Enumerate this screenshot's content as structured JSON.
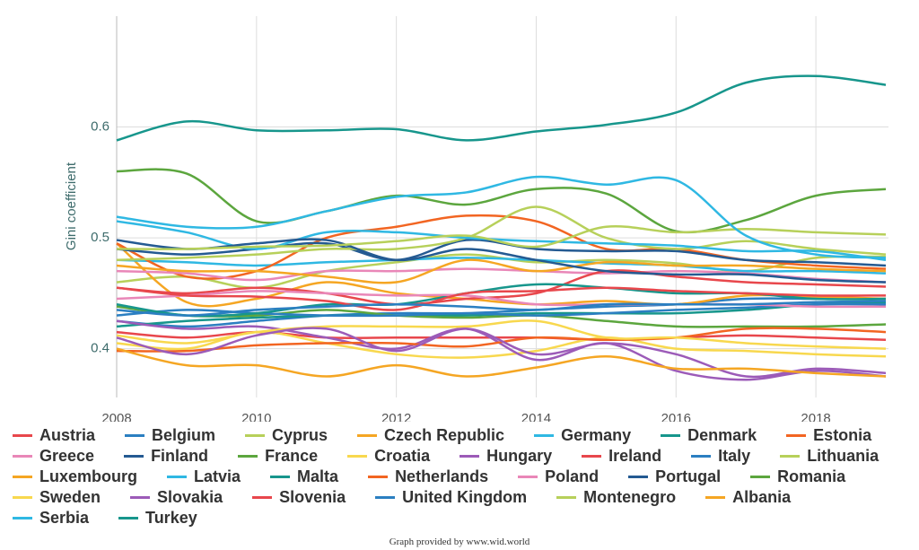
{
  "chart_data": {
    "type": "line",
    "y_label": "Gini coefficient",
    "footer": "Graph provided by www.wid.world",
    "x": [
      2008,
      2009,
      2010,
      2011,
      2012,
      2013,
      2014,
      2015,
      2016,
      2017,
      2018,
      2019
    ],
    "xlim": [
      2008,
      2019
    ],
    "xticks": [
      2008,
      2010,
      2012,
      2014,
      2016,
      2018
    ],
    "ylim": [
      0.356,
      0.7
    ],
    "yticks": [
      0.4,
      0.5,
      0.6
    ],
    "grid": true,
    "series": [
      {
        "name": "Austria",
        "color": "#e8474c",
        "values": [
          0.415,
          0.41,
          0.415,
          0.41,
          0.41,
          0.41,
          0.41,
          0.408,
          0.41,
          0.412,
          0.41,
          0.408
        ]
      },
      {
        "name": "Belgium",
        "color": "#2b7fc1",
        "values": [
          0.425,
          0.42,
          0.425,
          0.43,
          0.432,
          0.432,
          0.435,
          0.438,
          0.44,
          0.445,
          0.445,
          0.445
        ]
      },
      {
        "name": "Cyprus",
        "color": "#b7d05a",
        "values": [
          0.46,
          0.465,
          0.455,
          0.47,
          0.478,
          0.485,
          0.478,
          0.48,
          0.477,
          0.47,
          0.482,
          0.483
        ]
      },
      {
        "name": "Czech Republic",
        "color": "#f5a623",
        "values": [
          0.495,
          0.442,
          0.445,
          0.46,
          0.45,
          0.445,
          0.44,
          0.443,
          0.44,
          0.448,
          0.447,
          0.445
        ]
      },
      {
        "name": "Germany",
        "color": "#2fb8e3",
        "values": [
          0.48,
          0.478,
          0.475,
          0.478,
          0.48,
          0.482,
          0.48,
          0.477,
          0.475,
          0.47,
          0.47,
          0.468
        ]
      },
      {
        "name": "Denmark",
        "color": "#17968c",
        "values": [
          0.42,
          0.425,
          0.428,
          0.43,
          0.43,
          0.43,
          0.432,
          0.432,
          0.432,
          0.435,
          0.44,
          0.442
        ]
      },
      {
        "name": "Estonia",
        "color": "#f26522",
        "values": [
          0.495,
          0.465,
          0.47,
          0.5,
          0.51,
          0.52,
          0.515,
          0.49,
          0.49,
          0.48,
          0.475,
          0.472
        ]
      },
      {
        "name": "Greece",
        "color": "#e987b8",
        "values": [
          0.47,
          0.468,
          0.462,
          0.47,
          0.47,
          0.472,
          0.47,
          0.468,
          0.47,
          0.468,
          0.463,
          0.46
        ]
      },
      {
        "name": "Finland",
        "color": "#245a92",
        "values": [
          0.49,
          0.485,
          0.49,
          0.495,
          0.48,
          0.498,
          0.49,
          0.488,
          0.488,
          0.48,
          0.478,
          0.475
        ]
      },
      {
        "name": "France",
        "color": "#5ca63e",
        "values": [
          0.438,
          0.43,
          0.43,
          0.435,
          0.43,
          0.428,
          0.43,
          0.425,
          0.42,
          0.42,
          0.42,
          0.422
        ]
      },
      {
        "name": "Croatia",
        "color": "#f8d84e",
        "values": [
          0.405,
          0.4,
          0.415,
          0.405,
          0.395,
          0.392,
          0.398,
          0.41,
          0.4,
          0.398,
          0.395,
          0.393
        ]
      },
      {
        "name": "Hungary",
        "color": "#9c5bb8",
        "values": [
          0.425,
          0.418,
          0.42,
          0.41,
          0.4,
          0.418,
          0.39,
          0.405,
          0.38,
          0.372,
          0.38,
          0.375
        ]
      },
      {
        "name": "Ireland",
        "color": "#e8474c",
        "values": [
          0.455,
          0.45,
          0.455,
          0.45,
          0.44,
          0.445,
          0.45,
          0.47,
          0.465,
          0.46,
          0.458,
          0.456
        ]
      },
      {
        "name": "Italy",
        "color": "#2b7fc1",
        "values": [
          0.43,
          0.435,
          0.432,
          0.43,
          0.43,
          0.432,
          0.43,
          0.432,
          0.435,
          0.437,
          0.44,
          0.44
        ]
      },
      {
        "name": "Lithuania",
        "color": "#b7d05a",
        "values": [
          0.48,
          0.482,
          0.485,
          0.49,
          0.49,
          0.5,
          0.528,
          0.5,
          0.49,
          0.497,
          0.49,
          0.485
        ]
      },
      {
        "name": "Luxembourg",
        "color": "#f5a623",
        "values": [
          0.475,
          0.47,
          0.47,
          0.465,
          0.46,
          0.48,
          0.47,
          0.478,
          0.475,
          0.475,
          0.472,
          0.47
        ]
      },
      {
        "name": "Latvia",
        "color": "#2fb8e3",
        "values": [
          0.515,
          0.505,
          0.49,
          0.505,
          0.505,
          0.5,
          0.497,
          0.495,
          0.493,
          0.488,
          0.488,
          0.48
        ]
      },
      {
        "name": "Malta",
        "color": "#17968c",
        "values": [
          0.44,
          0.43,
          0.432,
          0.44,
          0.44,
          0.45,
          0.458,
          0.455,
          0.45,
          0.45,
          0.445,
          0.445
        ]
      },
      {
        "name": "Netherlands",
        "color": "#f26522",
        "values": [
          0.398,
          0.398,
          0.403,
          0.405,
          0.405,
          0.402,
          0.41,
          0.408,
          0.41,
          0.418,
          0.418,
          0.415
        ]
      },
      {
        "name": "Poland",
        "color": "#e987b8",
        "values": [
          0.445,
          0.448,
          0.452,
          0.45,
          0.448,
          0.448,
          0.44,
          0.44,
          0.44,
          0.44,
          0.438,
          0.438
        ]
      },
      {
        "name": "Portugal",
        "color": "#245a92",
        "values": [
          0.498,
          0.49,
          0.495,
          0.498,
          0.48,
          0.49,
          0.48,
          0.47,
          0.467,
          0.467,
          0.462,
          0.46
        ]
      },
      {
        "name": "Romania",
        "color": "#5ca63e",
        "values": [
          0.56,
          0.558,
          0.515,
          0.524,
          0.538,
          0.53,
          0.544,
          0.54,
          0.506,
          0.516,
          0.538,
          0.544
        ]
      },
      {
        "name": "Sweden",
        "color": "#f8d84e",
        "values": [
          0.412,
          0.405,
          0.415,
          0.42,
          0.42,
          0.42,
          0.425,
          0.41,
          0.41,
          0.405,
          0.402,
          0.4
        ]
      },
      {
        "name": "Slovakia",
        "color": "#9c5bb8",
        "values": [
          0.41,
          0.395,
          0.412,
          0.418,
          0.398,
          0.418,
          0.395,
          0.405,
          0.395,
          0.375,
          0.382,
          0.378
        ]
      },
      {
        "name": "Slovenia",
        "color": "#e8474c",
        "values": [
          0.455,
          0.448,
          0.447,
          0.443,
          0.435,
          0.45,
          0.452,
          0.455,
          0.452,
          0.45,
          0.448,
          0.448
        ]
      },
      {
        "name": "United Kingdom",
        "color": "#2b7fc1",
        "values": [
          0.435,
          0.43,
          0.435,
          0.438,
          0.44,
          0.438,
          0.435,
          0.44,
          0.44,
          0.44,
          0.442,
          0.443
        ]
      },
      {
        "name": "Montenegro",
        "color": "#b7d05a",
        "values": [
          0.49,
          0.49,
          0.492,
          0.493,
          0.497,
          0.502,
          0.492,
          0.51,
          0.505,
          0.508,
          0.505,
          0.503
        ]
      },
      {
        "name": "Albania",
        "color": "#f5a623",
        "values": [
          0.4,
          0.385,
          0.385,
          0.375,
          0.385,
          0.375,
          0.383,
          0.393,
          0.382,
          0.382,
          0.378,
          0.375
        ]
      },
      {
        "name": "Serbia",
        "color": "#2fb8e3",
        "values": [
          0.519,
          0.51,
          0.51,
          0.524,
          0.537,
          0.541,
          0.555,
          0.548,
          0.552,
          0.502,
          0.485,
          0.482
        ]
      },
      {
        "name": "Turkey",
        "color": "#17968c",
        "values": [
          0.588,
          0.605,
          0.597,
          0.597,
          0.598,
          0.588,
          0.596,
          0.602,
          0.613,
          0.64,
          0.646,
          0.638
        ]
      }
    ]
  }
}
